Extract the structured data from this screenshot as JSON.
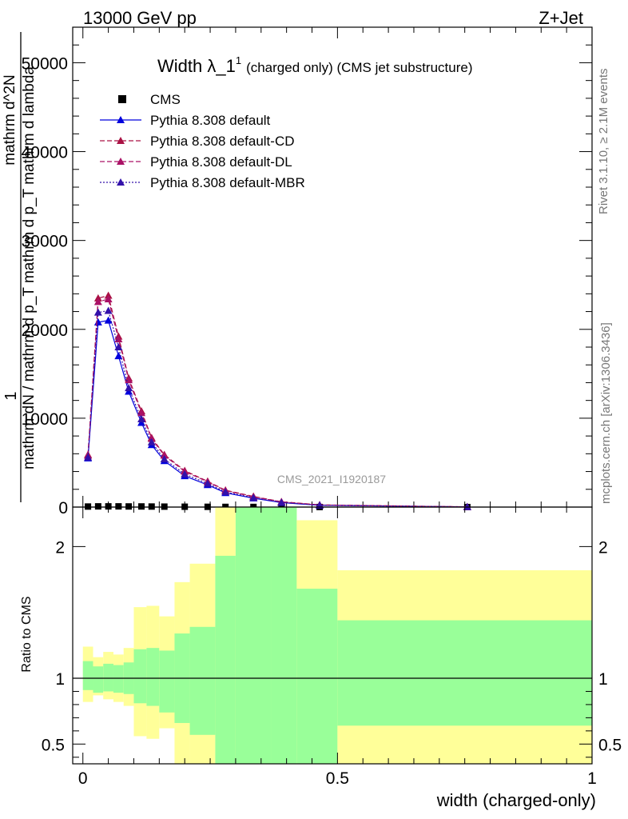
{
  "header": {
    "energy_label": "13000 GeV pp",
    "process_label": "Z+Jet"
  },
  "side_labels": {
    "rivet": "Rivet 3.1.10, ≥ 2.1M events",
    "mcplots": "mcplots.cern.ch [arXiv:1306.3436]"
  },
  "chart_data": [
    {
      "type": "line",
      "title": "Width λ_1",
      "title_superscript": "1",
      "subtitle": "(charged only) (CMS jet substructure)",
      "watermark": "CMS_2021_I1920187",
      "ylabel_numerator": "1",
      "ylabel_line1": "mathrm dN / mathrm d p_T mathrm d p_T mathrm d lambda",
      "ylabel_line2": "mathrm d^2N",
      "ylim": [
        0,
        54000
      ],
      "xlim": [
        -0.02,
        1.0
      ],
      "y_ticks": [
        0,
        10000,
        20000,
        30000,
        40000,
        50000
      ],
      "y_tick_labels": [
        "0",
        "10000",
        "20000",
        "30000",
        "40000",
        "50000"
      ],
      "legend_position": "top-left",
      "x": [
        0.01,
        0.03,
        0.05,
        0.07,
        0.09,
        0.115,
        0.135,
        0.16,
        0.2,
        0.245,
        0.28,
        0.335,
        0.39,
        0.465,
        0.755
      ],
      "series": [
        {
          "name": "CMS",
          "color": "#000000",
          "marker": "square",
          "values": [
            60,
            80,
            80,
            80,
            70,
            70,
            60,
            50,
            40,
            30,
            20,
            15,
            10,
            5,
            1
          ]
        },
        {
          "name": "Pythia 8.308 default",
          "color": "#0000dd",
          "marker": "triangle",
          "dash": "solid",
          "values": [
            5500,
            20800,
            21000,
            17000,
            13000,
            9500,
            7000,
            5200,
            3500,
            2500,
            1600,
            1000,
            500,
            200,
            20
          ]
        },
        {
          "name": "Pythia 8.308 default-CD",
          "color": "#aa1144",
          "marker": "triangle",
          "dash": "dashed",
          "values": [
            5900,
            23500,
            23800,
            19200,
            14500,
            10800,
            7800,
            5900,
            4100,
            2900,
            1900,
            1200,
            600,
            250,
            25
          ]
        },
        {
          "name": "Pythia 8.308 default-DL",
          "color": "#aa1166",
          "marker": "triangle",
          "dash": "dashed",
          "values": [
            5800,
            23100,
            23400,
            18900,
            14300,
            10600,
            7700,
            5800,
            4000,
            2850,
            1850,
            1150,
            580,
            240,
            24
          ]
        },
        {
          "name": "Pythia 8.308 default-MBR",
          "color": "#3311aa",
          "marker": "triangle",
          "dash": "dotted",
          "values": [
            5600,
            21900,
            22100,
            18000,
            13400,
            9900,
            7300,
            5400,
            3700,
            2650,
            1700,
            1050,
            520,
            210,
            21
          ]
        }
      ]
    },
    {
      "type": "area",
      "ylabel": "Ratio to CMS",
      "xlabel": "width (charged-only)",
      "ylim": [
        0.35,
        2.3
      ],
      "xlim": [
        -0.02,
        1.0
      ],
      "y_ticks": [
        0.5,
        1,
        2
      ],
      "y_tick_labels": [
        "0.5",
        "1",
        "2"
      ],
      "x_ticks": [
        0,
        0.5,
        1
      ],
      "x_tick_labels": [
        "0",
        "0.5",
        "1"
      ],
      "reference_line": 1,
      "bin_edges": [
        0,
        0.02,
        0.04,
        0.06,
        0.08,
        0.1,
        0.125,
        0.15,
        0.18,
        0.21,
        0.26,
        0.3,
        0.37,
        0.42,
        0.5,
        1.0
      ],
      "green_band_low": [
        0.91,
        0.89,
        0.9,
        0.89,
        0.88,
        0.81,
        0.79,
        0.74,
        0.66,
        0.57,
        0.2,
        0.2,
        0.2,
        0.2,
        0.64
      ],
      "green_band_high": [
        1.13,
        1.09,
        1.11,
        1.1,
        1.12,
        1.22,
        1.23,
        1.21,
        1.34,
        1.39,
        1.93,
        2.3,
        2.3,
        1.68,
        1.44
      ],
      "yellow_band_low": [
        0.82,
        0.87,
        0.84,
        0.82,
        0.79,
        0.56,
        0.54,
        0.62,
        0.23,
        0.1,
        0.1,
        0.1,
        0.1,
        0.1,
        0.1
      ],
      "yellow_band_high": [
        1.24,
        1.16,
        1.2,
        1.18,
        1.23,
        1.54,
        1.55,
        1.47,
        1.73,
        1.87,
        2.3,
        2.3,
        2.3,
        2.2,
        1.82
      ],
      "band_colors": {
        "green": "#99ff99",
        "yellow": "#ffff99"
      }
    }
  ]
}
